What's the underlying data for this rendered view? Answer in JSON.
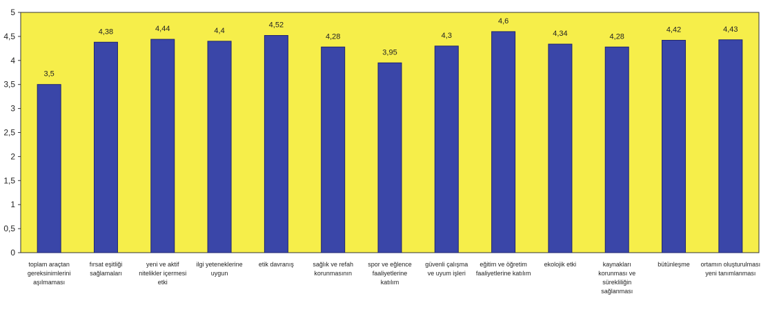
{
  "chart_data": {
    "type": "bar",
    "title": "",
    "xlabel": "",
    "ylabel": "",
    "ylim": [
      0,
      5
    ],
    "yticks": [
      "0",
      "0,5",
      "1",
      "1,5",
      "2",
      "2,5",
      "3",
      "3,5",
      "4",
      "4,5",
      "5"
    ],
    "grid": false,
    "legend": "none",
    "colors": {
      "plot_bg": "#f6ee4a",
      "bar": "#3a46a8",
      "bar_edge": "#1d2470",
      "axis": "#333333"
    },
    "categories": [
      [
        "toplam araçtan",
        "gereksinimlerini",
        "aşılmaması"
      ],
      [
        "fırsat eşitliği",
        "sağlamaları"
      ],
      [
        "yeni ve aktif",
        "nitelikler içermesi",
        "etki"
      ],
      [
        "ilgi yeteneklerine",
        "uygun"
      ],
      [
        "etik davranış"
      ],
      [
        "sağlık ve refah",
        "korunmasının"
      ],
      [
        "spor ve eğlence",
        "faaliyetlerine",
        "katılım"
      ],
      [
        "güvenli çalışma",
        "ve uyum işleri"
      ],
      [
        "eğitim ve öğretim",
        "faaliyetlerine katılım"
      ],
      [
        "ekolojik etki"
      ],
      [
        "kaynakları",
        "korunması ve",
        "sürekliliğin",
        "sağlanması"
      ],
      [
        "bütünleşme"
      ],
      [
        "ortamın oluşturulması",
        "yeni tanımlanması"
      ]
    ],
    "values": [
      3.5,
      4.38,
      4.44,
      4.4,
      4.52,
      4.28,
      3.95,
      4.3,
      4.6,
      4.34,
      4.28,
      4.42,
      4.43
    ],
    "value_labels": [
      "3,5",
      "4,38",
      "4,44",
      "4,4",
      "4,52",
      "4,28",
      "3,95",
      "4,3",
      "4,6",
      "4,34",
      "4,28",
      "4,42",
      "4,43"
    ]
  }
}
